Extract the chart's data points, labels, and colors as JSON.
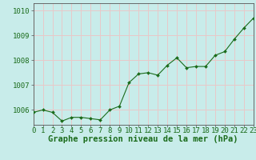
{
  "x": [
    0,
    1,
    2,
    3,
    4,
    5,
    6,
    7,
    8,
    9,
    10,
    11,
    12,
    13,
    14,
    15,
    16,
    17,
    18,
    19,
    20,
    21,
    22,
    23
  ],
  "y": [
    1005.9,
    1006.0,
    1005.9,
    1005.55,
    1005.7,
    1005.7,
    1005.65,
    1005.6,
    1006.0,
    1006.15,
    1007.1,
    1007.45,
    1007.5,
    1007.4,
    1007.8,
    1008.1,
    1007.7,
    1007.75,
    1007.75,
    1008.2,
    1008.35,
    1008.85,
    1009.3,
    1009.7
  ],
  "line_color": "#1a6b1a",
  "marker_color": "#1a6b1a",
  "grid_color": "#e8c8c8",
  "plot_bg": "#c8ecea",
  "fig_bg": "#c8ecea",
  "ylabel_ticks": [
    1006,
    1007,
    1008,
    1009,
    1010
  ],
  "xlabel_ticks": [
    0,
    1,
    2,
    3,
    4,
    5,
    6,
    7,
    8,
    9,
    10,
    11,
    12,
    13,
    14,
    15,
    16,
    17,
    18,
    19,
    20,
    21,
    22,
    23
  ],
  "xlabel": "Graphe pression niveau de la mer (hPa)",
  "text_color": "#1a6b1a",
  "xlim": [
    0,
    23
  ],
  "ylim": [
    1005.4,
    1010.3
  ],
  "tick_fontsize": 6.5,
  "label_fontsize": 7.5
}
